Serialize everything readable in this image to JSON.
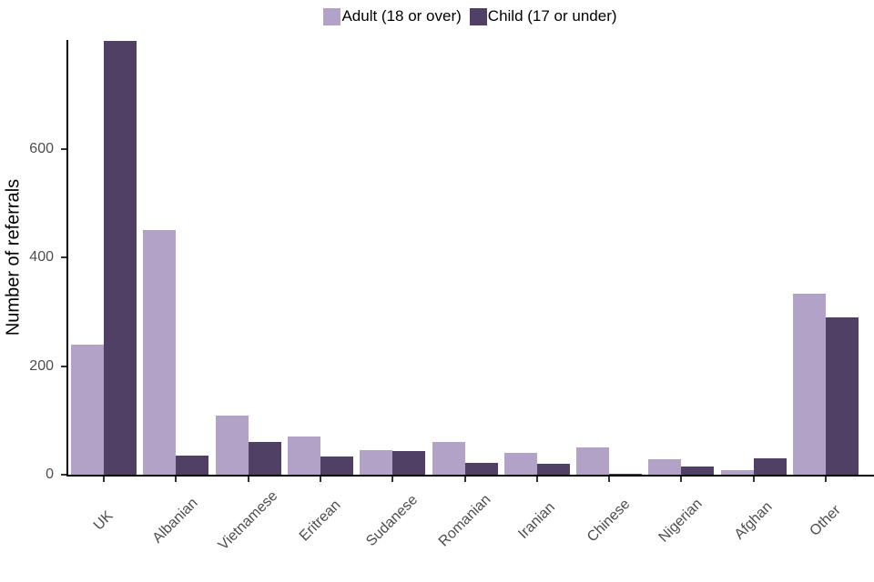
{
  "chart_data": {
    "type": "bar",
    "bar_mode": "grouped",
    "title": "",
    "categories": [
      "UK",
      "Albanian",
      "Vietnamese",
      "Eritrean",
      "Sudanese",
      "Romanian",
      "Iranian",
      "Chinese",
      "Nigerian",
      "Afghan",
      "Other"
    ],
    "series": [
      {
        "name": "Adult (18 or over)",
        "color": "#b3a2c8",
        "values": [
          240,
          450,
          108,
          70,
          46,
          61,
          40,
          51,
          28,
          8,
          333
        ]
      },
      {
        "name": "Child (17 or under)",
        "color": "#504066",
        "values": [
          798,
          35,
          61,
          33,
          44,
          22,
          20,
          2,
          15,
          30,
          290
        ]
      }
    ],
    "xlabel": "",
    "ylabel": "Number of referrals",
    "ylim": [
      0,
      800
    ],
    "yticks": [
      0,
      200,
      400,
      600
    ],
    "grid": false,
    "legend_position": "top"
  },
  "axis_style": {
    "line_color": "#000000",
    "tick_color": "#333333",
    "tick_label_color": "#4d4d4d"
  }
}
